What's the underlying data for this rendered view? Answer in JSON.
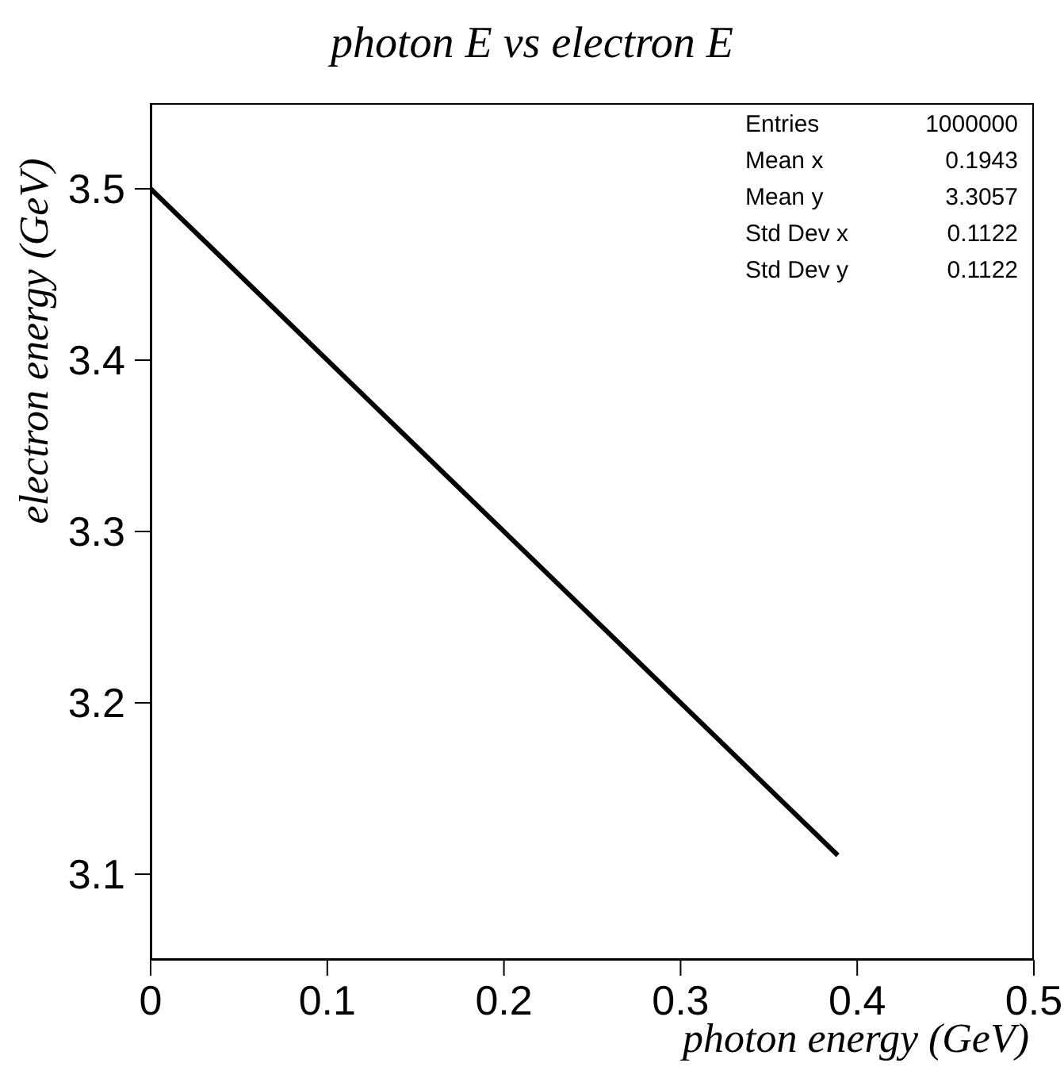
{
  "chart_data": {
    "type": "line",
    "title": "photon E vs electron E",
    "xlabel": "photon energy (GeV)",
    "ylabel": "electron energy (GeV)",
    "x": [
      0,
      0.389
    ],
    "series": [
      {
        "color": "#000000",
        "values": [
          3.5,
          3.111
        ]
      }
    ],
    "xlim": [
      0,
      0.5
    ],
    "xticks": [
      0,
      0.1,
      0.2,
      0.3,
      0.4,
      0.5
    ],
    "ylim": [
      3.05,
      3.55
    ],
    "yticks": [
      3.1,
      3.2,
      3.3,
      3.4,
      3.5
    ],
    "grid": false,
    "marker": "none",
    "line_style": "solid",
    "annotations": [
      "Entries",
      "1000000",
      "Mean x",
      "0.1943",
      "Mean y",
      "3.3057",
      "Std Dev x",
      "0.1122",
      "Std Dev y",
      "0.1122"
    ]
  }
}
